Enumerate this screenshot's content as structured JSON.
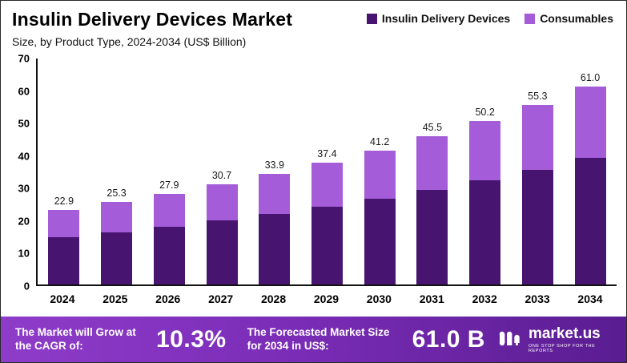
{
  "header": {
    "title": "Insulin Delivery Devices Market",
    "subtitle": "Size, by Product Type, 2024-2034 (US$ Billion)"
  },
  "legend": [
    {
      "label": "Insulin Delivery Devices",
      "color": "#471570"
    },
    {
      "label": "Consumables",
      "color": "#a45cd8"
    }
  ],
  "chart_data": {
    "type": "bar",
    "stacked": true,
    "title": "Insulin Delivery Devices Market",
    "subtitle": "Size, by Product Type, 2024-2034 (US$ Billion)",
    "categories": [
      "2024",
      "2025",
      "2026",
      "2027",
      "2028",
      "2029",
      "2030",
      "2031",
      "2032",
      "2033",
      "2034"
    ],
    "series": [
      {
        "name": "Insulin Delivery Devices",
        "color": "#471570",
        "values": [
          14.5,
          16.0,
          17.8,
          19.6,
          21.6,
          23.9,
          26.3,
          29.0,
          32.0,
          35.3,
          38.9
        ]
      },
      {
        "name": "Consumables",
        "color": "#a45cd8",
        "values": [
          8.4,
          9.3,
          10.1,
          11.1,
          12.3,
          13.5,
          14.9,
          16.5,
          18.2,
          20.0,
          22.1
        ]
      }
    ],
    "totals": [
      22.9,
      25.3,
      27.9,
      30.7,
      33.9,
      37.4,
      41.2,
      45.5,
      50.2,
      55.3,
      61.0
    ],
    "ylim": [
      0,
      70
    ],
    "yticks": [
      0,
      10,
      20,
      30,
      40,
      50,
      60,
      70
    ],
    "grid": false,
    "legend_position": "top-right"
  },
  "footer": {
    "cagr_label": "The Market will Grow at the CAGR of:",
    "cagr_value": "10.3%",
    "forecast_label": "The Forecasted Market Size for 2034 in US$:",
    "forecast_value": "61.0 B",
    "brand": "market.us",
    "brand_tagline": "ONE STOP SHOP FOR THE REPORTS"
  }
}
